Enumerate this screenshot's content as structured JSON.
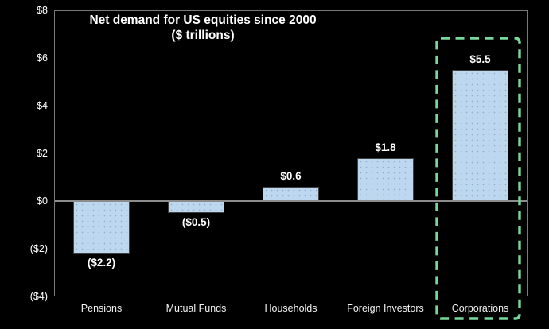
{
  "chart_data": {
    "type": "bar",
    "title": "Net demand for US equities since 2000",
    "subtitle": "($ trillions)",
    "categories": [
      "Pensions",
      "Mutual Funds",
      "Households",
      "Foreign Investors",
      "Corporations"
    ],
    "values": [
      -2.2,
      -0.5,
      0.6,
      1.8,
      5.5
    ],
    "value_labels": [
      "($2.2)",
      "($0.5)",
      "$0.6",
      "$1.8",
      "$5.5"
    ],
    "ylim": [
      -4,
      8
    ],
    "ytick_values": [
      8,
      6,
      4,
      2,
      0,
      -2,
      -4
    ],
    "ytick_labels": [
      "$8",
      "$6",
      "$4",
      "$2",
      "$0",
      "($2)",
      "($4)"
    ],
    "grid": false,
    "legend": "none",
    "highlighted_category": "Corporations",
    "colors": {
      "background": "#000000",
      "bar_fill": "#BDD7EE",
      "bar_border": "#3F3F3F",
      "text": "#FFFFFF",
      "plot_border": "#7A7A7A",
      "zero_line": "#8C8C8C",
      "highlight_box": "#78D79B"
    }
  }
}
